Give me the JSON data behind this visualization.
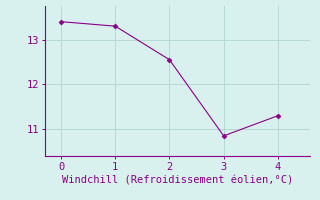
{
  "x": [
    0,
    1,
    2,
    3,
    4
  ],
  "y": [
    13.4,
    13.3,
    12.55,
    10.85,
    11.3
  ],
  "line_color": "#8B008B",
  "marker_color": "#8B008B",
  "background_color": "#D8F0EE",
  "grid_color": "#B8D8D4",
  "axis_color": "#8B008B",
  "tick_color": "#8B008B",
  "xlabel": "Windchill (Refroidissement éolien,°C)",
  "xlabel_color": "#8B008B",
  "xlabel_fontsize": 7.5,
  "xlim": [
    -0.3,
    4.6
  ],
  "ylim": [
    10.4,
    13.75
  ],
  "yticks": [
    11,
    12,
    13
  ],
  "xticks": [
    0,
    1,
    2,
    3,
    4
  ],
  "tick_fontsize": 7.5,
  "font_family": "monospace"
}
